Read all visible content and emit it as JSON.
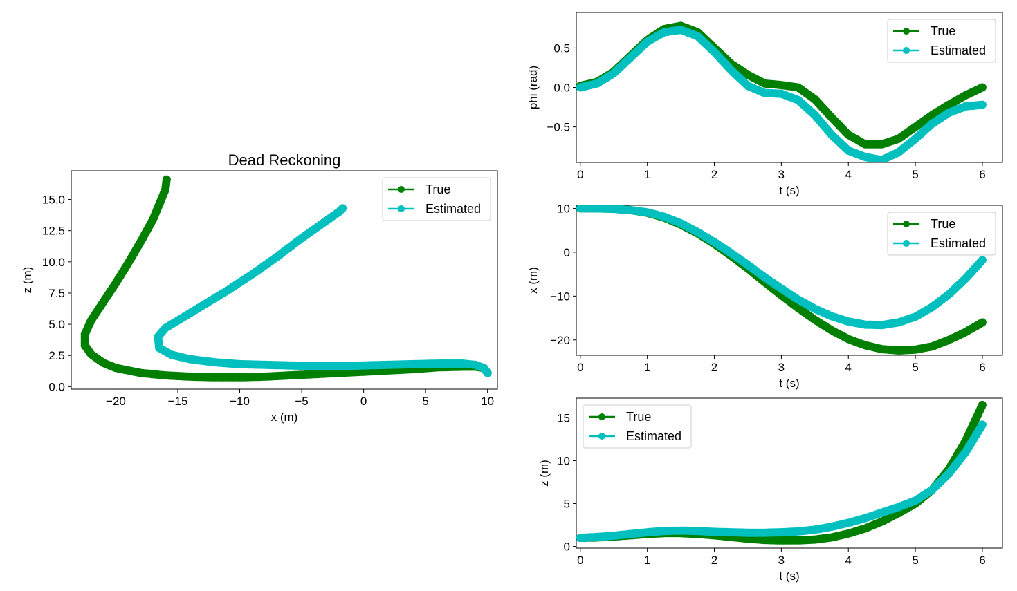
{
  "chart_data": [
    {
      "id": "dead_reckoning",
      "type": "scatter",
      "title": "Dead Reckoning",
      "xlabel": "x (m)",
      "ylabel": "z (m)",
      "xlim": [
        -23.6,
        10.8
      ],
      "ylim": [
        -0.2,
        17.3
      ],
      "xticks": [
        -20,
        -15,
        -10,
        -5,
        0,
        5,
        10
      ],
      "xtick_labels": [
        "−20",
        "−15",
        "−10",
        "−5",
        "0",
        "5",
        "10"
      ],
      "yticks": [
        0.0,
        2.5,
        5.0,
        7.5,
        10.0,
        12.5,
        15.0
      ],
      "ytick_labels": [
        "0.0",
        "2.5",
        "5.0",
        "7.5",
        "10.0",
        "12.5",
        "15.0"
      ],
      "grid": false,
      "legend": "top-right",
      "series": [
        {
          "name": "True",
          "color": "#007f00",
          "x": [
            10.0,
            9.7,
            9.0,
            8.0,
            6.0,
            4.0,
            2.0,
            0.0,
            -2.0,
            -4.0,
            -6.0,
            -8.0,
            -10.0,
            -12.0,
            -14.0,
            -16.0,
            -18.0,
            -20.0,
            -21.0,
            -22.0,
            -22.5,
            -22.5,
            -22.0,
            -21.0,
            -20.0,
            -19.0,
            -18.0,
            -17.0,
            -16.5,
            -16.0,
            -15.9
          ],
          "y": [
            1.1,
            1.5,
            1.6,
            1.6,
            1.55,
            1.4,
            1.3,
            1.2,
            1.1,
            1.0,
            0.9,
            0.8,
            0.75,
            0.75,
            0.8,
            0.9,
            1.1,
            1.5,
            1.9,
            2.6,
            3.3,
            4.2,
            5.3,
            6.8,
            8.3,
            9.9,
            11.6,
            13.4,
            14.6,
            15.8,
            16.6
          ]
        },
        {
          "name": "Estimated",
          "color": "#00bfbf",
          "x": [
            10.0,
            9.7,
            9.0,
            8.0,
            6.0,
            4.0,
            2.0,
            0.0,
            -2.0,
            -4.0,
            -6.0,
            -8.0,
            -10.0,
            -12.0,
            -14.0,
            -15.5,
            -16.5,
            -16.6,
            -16.0,
            -15.0,
            -13.0,
            -11.0,
            -9.0,
            -7.0,
            -5.0,
            -3.0,
            -2.0,
            -1.7
          ],
          "y": [
            1.1,
            1.5,
            1.75,
            1.85,
            1.85,
            1.8,
            1.75,
            1.7,
            1.65,
            1.65,
            1.7,
            1.75,
            1.8,
            1.95,
            2.2,
            2.55,
            3.1,
            4.0,
            4.7,
            5.3,
            6.5,
            7.7,
            9.0,
            10.4,
            11.9,
            13.3,
            14.0,
            14.3
          ]
        }
      ]
    },
    {
      "id": "phi_vs_t",
      "type": "scatter",
      "title": "",
      "xlabel": "t (s)",
      "ylabel": "phi (rad)",
      "xlim": [
        -0.06,
        6.3
      ],
      "ylim": [
        -0.95,
        0.95
      ],
      "xticks": [
        0,
        1,
        2,
        3,
        4,
        5,
        6
      ],
      "xtick_labels": [
        "0",
        "1",
        "2",
        "3",
        "4",
        "5",
        "6"
      ],
      "yticks": [
        -0.5,
        0.0,
        0.5
      ],
      "ytick_labels": [
        "−0.5",
        "0.0",
        "0.5"
      ],
      "grid": false,
      "legend": "top-right",
      "series": [
        {
          "name": "True",
          "color": "#007f00",
          "x": [
            0.0,
            0.25,
            0.5,
            0.75,
            1.0,
            1.25,
            1.5,
            1.75,
            2.0,
            2.25,
            2.5,
            2.75,
            3.0,
            3.25,
            3.5,
            3.75,
            4.0,
            4.25,
            4.5,
            4.75,
            5.0,
            5.25,
            5.5,
            5.75,
            6.0
          ],
          "y": [
            0.02,
            0.07,
            0.2,
            0.4,
            0.6,
            0.74,
            0.78,
            0.7,
            0.5,
            0.3,
            0.16,
            0.05,
            0.03,
            0.0,
            -0.15,
            -0.38,
            -0.6,
            -0.72,
            -0.72,
            -0.65,
            -0.5,
            -0.35,
            -0.22,
            -0.1,
            0.0
          ]
        },
        {
          "name": "Estimated",
          "color": "#00bfbf",
          "x": [
            0.0,
            0.25,
            0.5,
            0.75,
            1.0,
            1.25,
            1.5,
            1.75,
            2.0,
            2.25,
            2.5,
            2.75,
            3.0,
            3.25,
            3.5,
            3.75,
            4.0,
            4.25,
            4.5,
            4.75,
            5.0,
            5.25,
            5.5,
            5.75,
            6.0
          ],
          "y": [
            0.0,
            0.05,
            0.18,
            0.38,
            0.58,
            0.7,
            0.73,
            0.65,
            0.45,
            0.22,
            0.02,
            -0.07,
            -0.08,
            -0.16,
            -0.35,
            -0.6,
            -0.8,
            -0.88,
            -0.92,
            -0.82,
            -0.65,
            -0.46,
            -0.32,
            -0.24,
            -0.22
          ]
        }
      ]
    },
    {
      "id": "x_vs_t",
      "type": "scatter",
      "title": "",
      "xlabel": "t (s)",
      "ylabel": "x (m)",
      "xlim": [
        -0.06,
        6.3
      ],
      "ylim": [
        -23.5,
        10.7
      ],
      "xticks": [
        0,
        1,
        2,
        3,
        4,
        5,
        6
      ],
      "xtick_labels": [
        "0",
        "1",
        "2",
        "3",
        "4",
        "5",
        "6"
      ],
      "yticks": [
        -20,
        -10,
        0,
        10
      ],
      "ytick_labels": [
        "−20",
        "−10",
        "0",
        "10"
      ],
      "grid": false,
      "legend": "top-right",
      "series": [
        {
          "name": "True",
          "color": "#007f00",
          "x": [
            0.0,
            0.25,
            0.5,
            0.75,
            1.0,
            1.25,
            1.5,
            1.75,
            2.0,
            2.25,
            2.5,
            2.75,
            3.0,
            3.25,
            3.5,
            3.75,
            4.0,
            4.25,
            4.5,
            4.75,
            5.0,
            5.25,
            5.5,
            5.75,
            6.0
          ],
          "y": [
            10.0,
            10.0,
            9.9,
            9.6,
            9.0,
            7.9,
            6.3,
            4.3,
            1.9,
            -0.8,
            -3.7,
            -6.8,
            -9.8,
            -12.7,
            -15.4,
            -17.8,
            -19.8,
            -21.2,
            -22.1,
            -22.4,
            -22.2,
            -21.5,
            -20.0,
            -18.2,
            -16.0
          ]
        },
        {
          "name": "Estimated",
          "color": "#00bfbf",
          "x": [
            0.0,
            0.25,
            0.5,
            0.75,
            1.0,
            1.25,
            1.5,
            1.75,
            2.0,
            2.25,
            2.5,
            2.75,
            3.0,
            3.25,
            3.5,
            3.75,
            4.0,
            4.25,
            4.5,
            4.75,
            5.0,
            5.25,
            5.5,
            5.75,
            6.0
          ],
          "y": [
            10.0,
            10.0,
            9.9,
            9.6,
            9.1,
            8.1,
            6.6,
            4.6,
            2.3,
            -0.2,
            -2.9,
            -5.7,
            -8.3,
            -10.8,
            -12.9,
            -14.6,
            -15.8,
            -16.5,
            -16.6,
            -16.0,
            -14.7,
            -12.5,
            -9.6,
            -6.0,
            -1.8
          ]
        }
      ]
    },
    {
      "id": "z_vs_t",
      "type": "scatter",
      "title": "",
      "xlabel": "t (s)",
      "ylabel": "z (m)",
      "xlim": [
        -0.06,
        6.3
      ],
      "ylim": [
        -0.2,
        17.3
      ],
      "xticks": [
        0,
        1,
        2,
        3,
        4,
        5,
        6
      ],
      "xtick_labels": [
        "0",
        "1",
        "2",
        "3",
        "4",
        "5",
        "6"
      ],
      "yticks": [
        0,
        5,
        10,
        15
      ],
      "ytick_labels": [
        "0",
        "5",
        "10",
        "15"
      ],
      "grid": false,
      "legend": "top-left",
      "series": [
        {
          "name": "True",
          "color": "#007f00",
          "x": [
            0.0,
            0.25,
            0.5,
            0.75,
            1.0,
            1.25,
            1.5,
            1.75,
            2.0,
            2.25,
            2.5,
            2.75,
            3.0,
            3.25,
            3.5,
            3.75,
            4.0,
            4.25,
            4.5,
            4.75,
            5.0,
            5.25,
            5.5,
            5.75,
            6.0
          ],
          "y": [
            1.0,
            1.05,
            1.15,
            1.3,
            1.45,
            1.55,
            1.55,
            1.45,
            1.3,
            1.1,
            0.9,
            0.75,
            0.7,
            0.7,
            0.8,
            1.05,
            1.5,
            2.1,
            2.9,
            3.9,
            5.0,
            6.6,
            9.0,
            12.3,
            16.5
          ]
        },
        {
          "name": "Estimated",
          "color": "#00bfbf",
          "x": [
            0.0,
            0.25,
            0.5,
            0.75,
            1.0,
            1.25,
            1.5,
            1.75,
            2.0,
            2.25,
            2.5,
            2.75,
            3.0,
            3.25,
            3.5,
            3.75,
            4.0,
            4.25,
            4.5,
            4.75,
            5.0,
            5.25,
            5.5,
            5.75,
            6.0
          ],
          "y": [
            1.0,
            1.1,
            1.25,
            1.45,
            1.65,
            1.8,
            1.85,
            1.8,
            1.7,
            1.65,
            1.6,
            1.6,
            1.65,
            1.75,
            1.95,
            2.3,
            2.75,
            3.3,
            3.95,
            4.6,
            5.35,
            6.6,
            8.5,
            11.0,
            14.2
          ]
        }
      ]
    }
  ]
}
